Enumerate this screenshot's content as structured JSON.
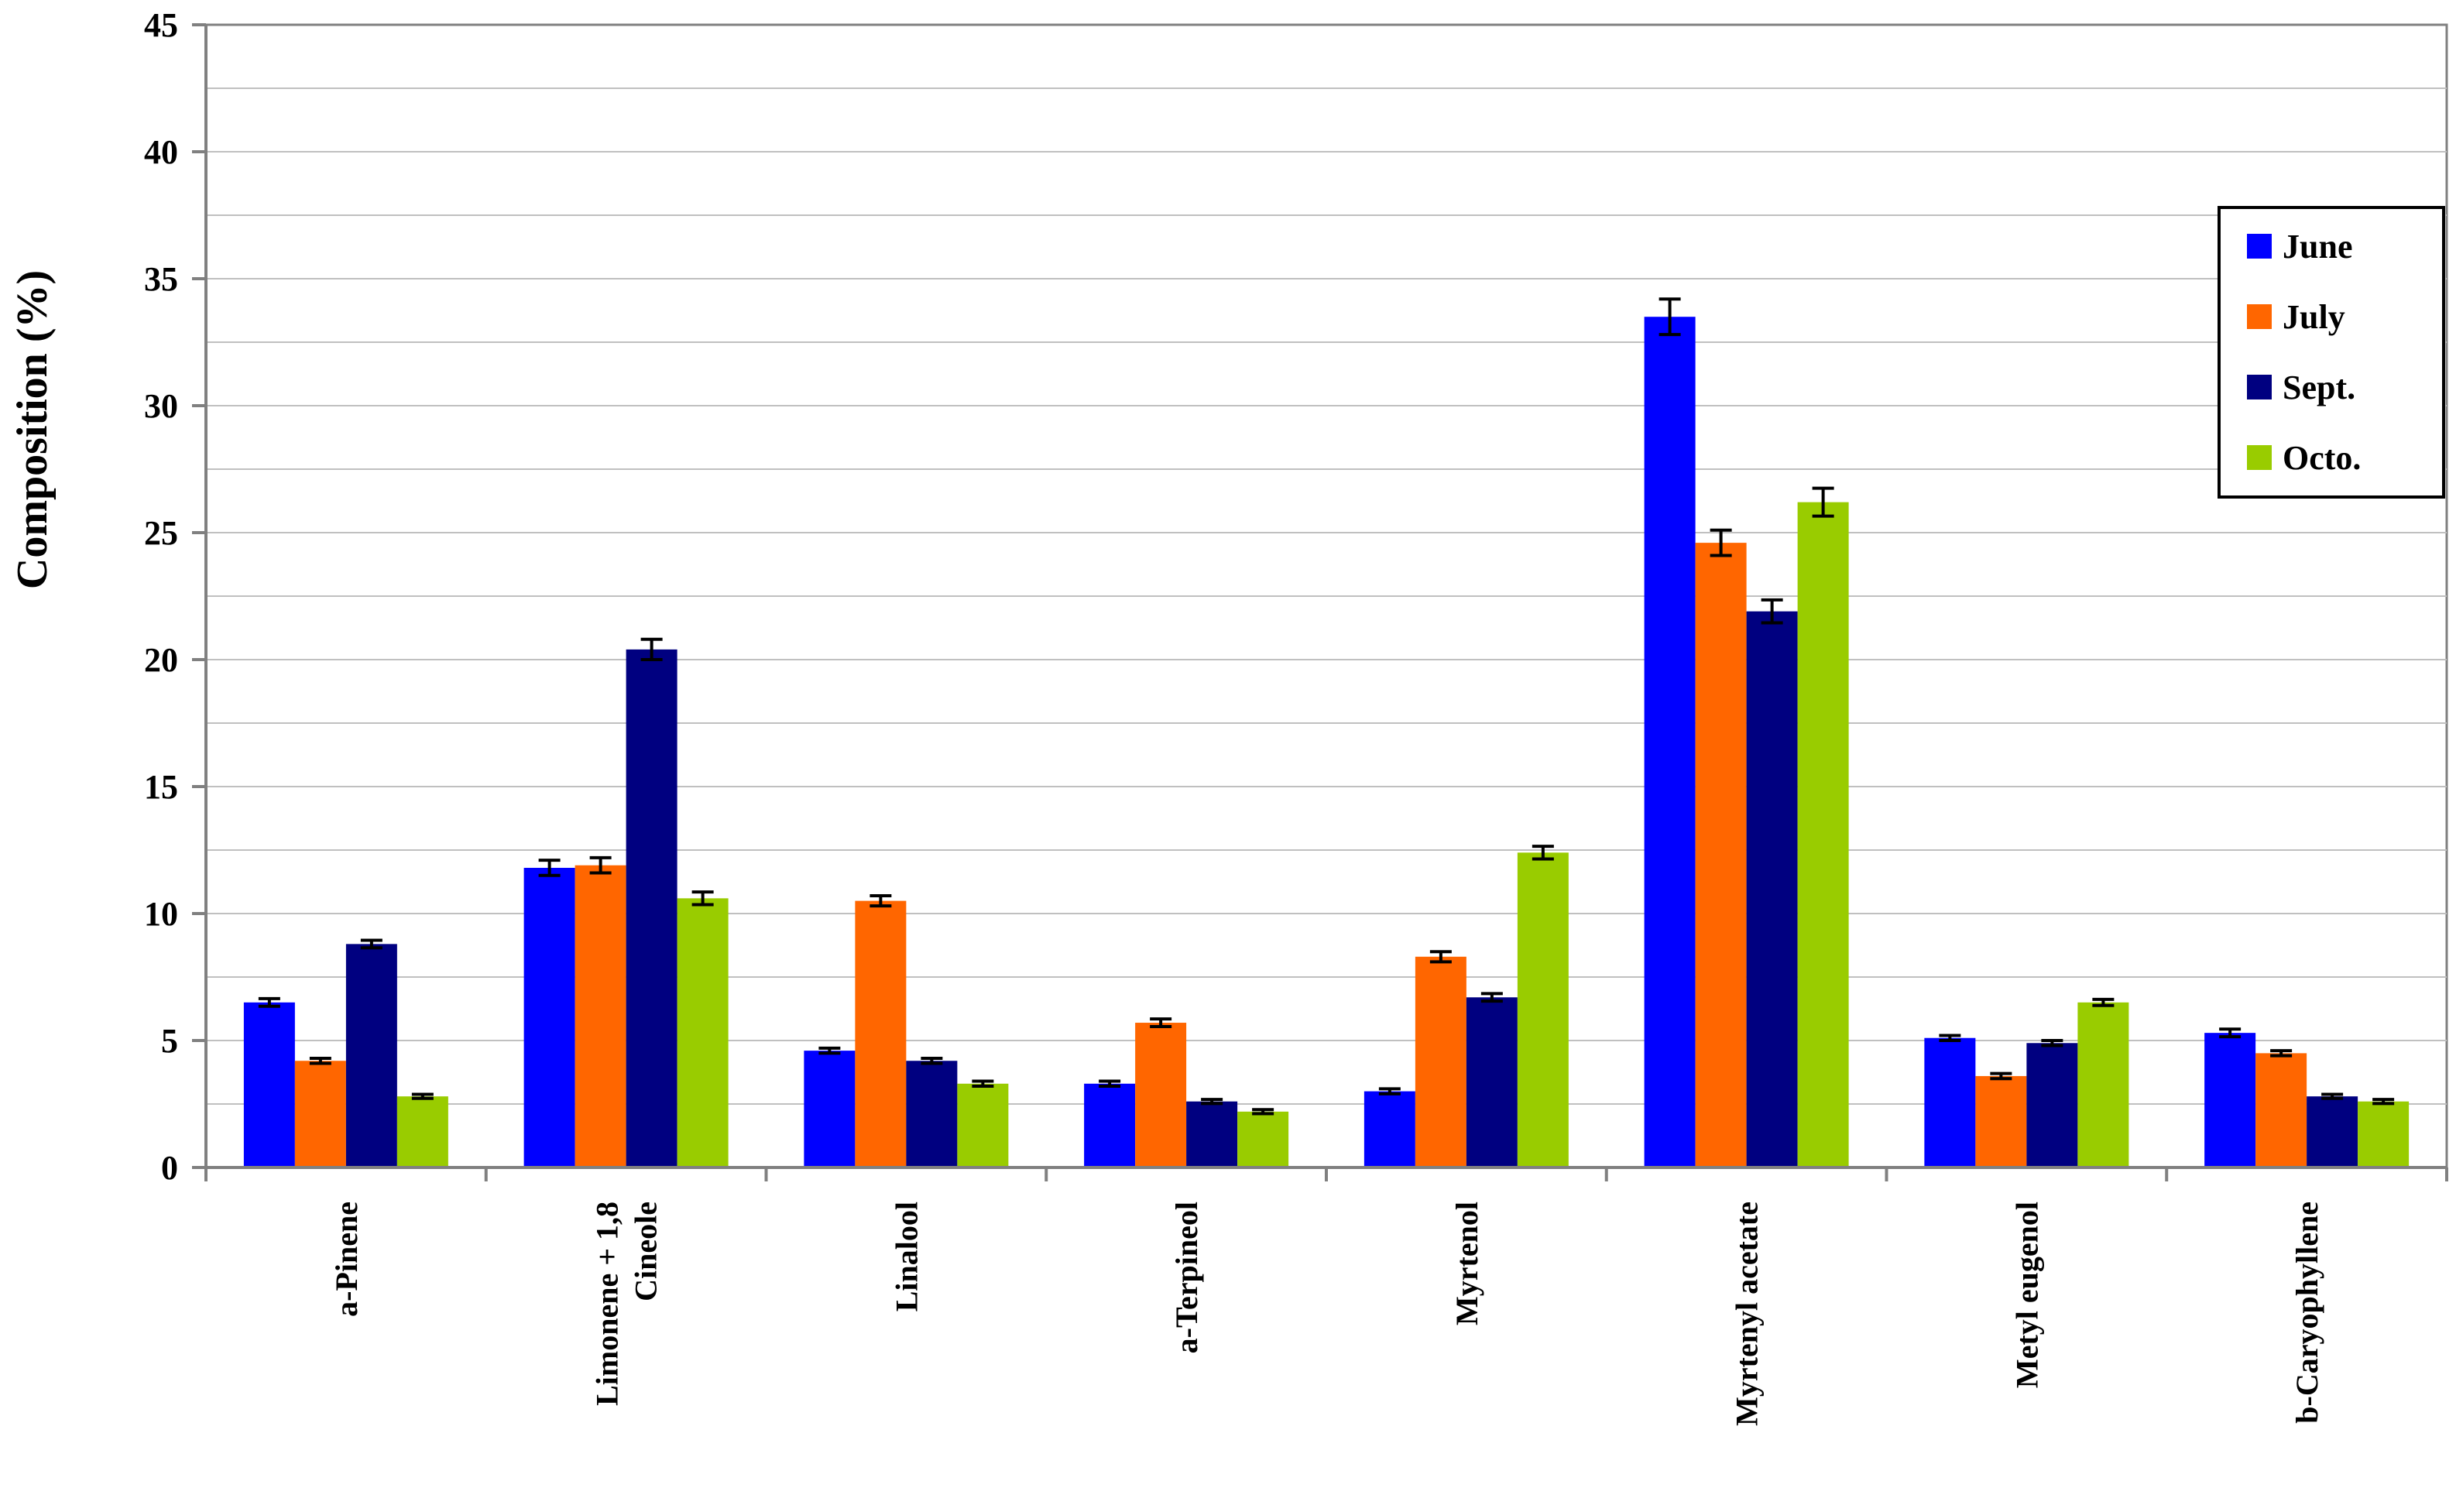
{
  "chart_data": {
    "type": "bar",
    "title": "",
    "xlabel": "",
    "ylabel": "Composition (%)",
    "ylim": [
      0,
      45
    ],
    "yticks": [
      0,
      5,
      10,
      15,
      20,
      25,
      30,
      35,
      40,
      45
    ],
    "grid": true,
    "legend_position": "top-right",
    "categories": [
      [
        "a-Pinene"
      ],
      [
        "Limonene + 1,8",
        "Cineole"
      ],
      [
        "Linalool"
      ],
      [
        "a-Terpineol"
      ],
      [
        "Myrtenol"
      ],
      [
        "Myrtenyl acetate"
      ],
      [
        "Metyl eugenol"
      ],
      [
        "b-Caryophyllene"
      ]
    ],
    "series": [
      {
        "name": "June",
        "color": "#0000ff",
        "values": [
          6.5,
          11.8,
          4.6,
          3.3,
          3.0,
          33.5,
          5.1,
          5.3
        ],
        "errors": [
          0.15,
          0.3,
          0.1,
          0.1,
          0.1,
          0.7,
          0.1,
          0.15
        ]
      },
      {
        "name": "July",
        "color": "#ff6600",
        "values": [
          4.2,
          11.9,
          10.5,
          5.7,
          8.3,
          24.6,
          3.6,
          4.5
        ],
        "errors": [
          0.1,
          0.3,
          0.2,
          0.15,
          0.2,
          0.5,
          0.1,
          0.1
        ]
      },
      {
        "name": "Sept.",
        "color": "#000080",
        "values": [
          8.8,
          20.4,
          4.2,
          2.6,
          6.7,
          21.9,
          4.9,
          2.8
        ],
        "errors": [
          0.15,
          0.4,
          0.1,
          0.08,
          0.15,
          0.45,
          0.1,
          0.08
        ]
      },
      {
        "name": "Octo.",
        "color": "#99cc00",
        "values": [
          2.8,
          10.6,
          3.3,
          2.2,
          12.4,
          26.2,
          6.5,
          2.6
        ],
        "errors": [
          0.08,
          0.25,
          0.1,
          0.08,
          0.25,
          0.55,
          0.12,
          0.08
        ]
      }
    ],
    "axis_color": "#808080",
    "grid_color": "#c0c0c0"
  }
}
